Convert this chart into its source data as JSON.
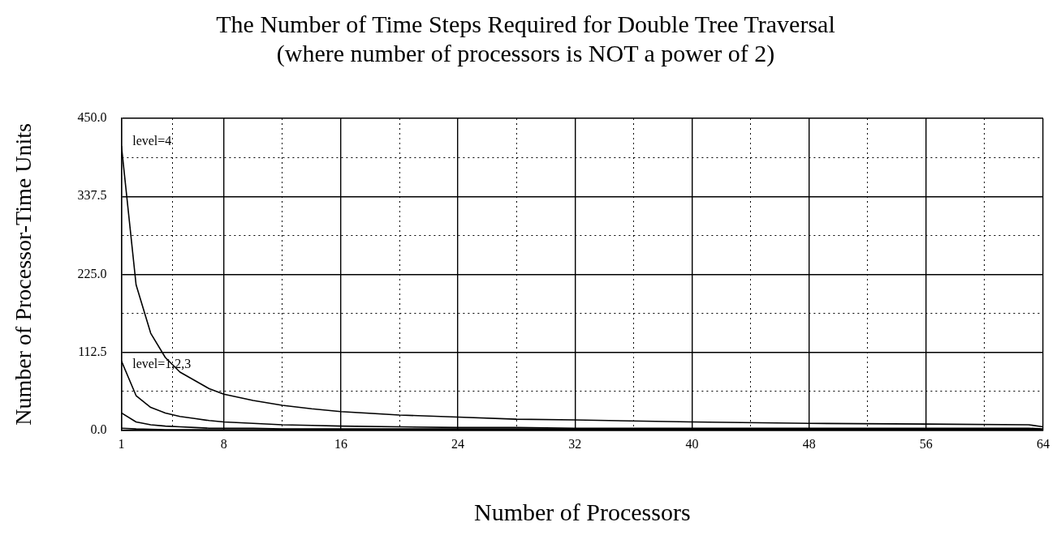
{
  "chart_data": {
    "type": "line",
    "title": "The Number of Time Steps Required for Double Tree Traversal",
    "subtitle": "(where number of processors is NOT a power of 2)",
    "xlabel": "Number of Processors",
    "ylabel": "Number of Processor-Time Units",
    "xlim": [
      1,
      64
    ],
    "ylim": [
      0,
      450
    ],
    "xticks": [
      1,
      {
        "value": 4.5,
        "label": null
      },
      8,
      {
        "value": 12,
        "label": null
      },
      16,
      {
        "value": 20,
        "label": null
      },
      24,
      {
        "value": 28,
        "label": null
      },
      32,
      {
        "value": 36,
        "label": null
      },
      40,
      {
        "value": 44,
        "label": null
      },
      48,
      {
        "value": 52,
        "label": null
      },
      56,
      {
        "value": 60,
        "label": null
      },
      64
    ],
    "yticks": [
      {
        "value": 0,
        "label": "0.0"
      },
      {
        "value": 56.25,
        "label": null
      },
      112.5,
      {
        "value": 168.75,
        "label": null
      },
      {
        "value": 225,
        "label": "225.0"
      },
      {
        "value": 281.25,
        "label": null
      },
      337.5,
      {
        "value": 393.75,
        "label": null
      },
      {
        "value": 450,
        "label": "450.0"
      }
    ],
    "grid": true,
    "legend": false,
    "marker": "none",
    "line_style": "solid",
    "annotations": [
      "level=4",
      "level=1,2,3"
    ],
    "series": [
      {
        "color": "#000000",
        "x": [
          1,
          2,
          3,
          4,
          5,
          6,
          7,
          8,
          10,
          12,
          14,
          16,
          20,
          24,
          28,
          32,
          40,
          48,
          56,
          63,
          64
        ],
        "values": [
          410,
          210,
          140,
          105,
          84,
          72,
          60,
          52,
          43,
          36,
          31,
          27,
          22,
          19,
          16,
          15,
          12,
          10,
          9,
          8,
          5
        ]
      },
      {
        "color": "#000000",
        "x": [
          1,
          2,
          3,
          4,
          5,
          6,
          7,
          8,
          10,
          12,
          14,
          16,
          20,
          24,
          28,
          32,
          40,
          48,
          56,
          63,
          64
        ],
        "values": [
          100,
          50,
          33,
          25,
          20,
          17,
          14,
          12,
          10,
          8,
          7,
          6,
          5,
          4,
          4,
          3,
          3,
          3,
          3,
          3,
          2
        ]
      },
      {
        "color": "#000000",
        "x": [
          1,
          2,
          3,
          4,
          5,
          6,
          7,
          8,
          10,
          12,
          14,
          16,
          20,
          24,
          28,
          32,
          40,
          48,
          56,
          63,
          64
        ],
        "values": [
          25,
          12,
          8,
          6,
          5,
          4,
          3,
          3,
          3,
          2,
          2,
          2,
          2,
          2,
          2,
          2,
          2,
          2,
          2,
          2,
          1
        ]
      },
      {
        "color": "#000000",
        "x": [
          1,
          2,
          4,
          8,
          16,
          32,
          64
        ],
        "values": [
          3,
          2,
          1,
          1,
          1,
          1,
          1
        ]
      }
    ]
  }
}
